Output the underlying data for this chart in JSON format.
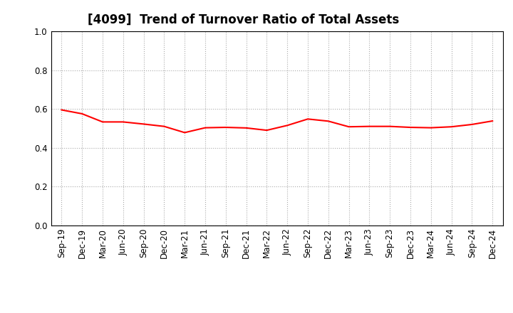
{
  "title": "[4099]  Trend of Turnover Ratio of Total Assets",
  "x_labels": [
    "Sep-19",
    "Dec-19",
    "Mar-20",
    "Jun-20",
    "Sep-20",
    "Dec-20",
    "Mar-21",
    "Jun-21",
    "Sep-21",
    "Dec-21",
    "Mar-22",
    "Jun-22",
    "Sep-22",
    "Dec-22",
    "Mar-23",
    "Jun-23",
    "Sep-23",
    "Dec-23",
    "Mar-24",
    "Jun-24",
    "Sep-24",
    "Dec-24"
  ],
  "y_values": [
    0.595,
    0.575,
    0.533,
    0.533,
    0.522,
    0.51,
    0.478,
    0.503,
    0.505,
    0.502,
    0.49,
    0.515,
    0.548,
    0.537,
    0.508,
    0.51,
    0.51,
    0.505,
    0.503,
    0.508,
    0.52,
    0.538
  ],
  "ylim": [
    0.0,
    1.0
  ],
  "yticks": [
    0.0,
    0.2,
    0.4,
    0.6,
    0.8,
    1.0
  ],
  "line_color": "#FF0000",
  "line_width": 1.5,
  "bg_color": "#FFFFFF",
  "plot_bg_color": "#FFFFFF",
  "grid_color": "#AAAAAA",
  "title_fontsize": 12,
  "tick_fontsize": 8.5
}
